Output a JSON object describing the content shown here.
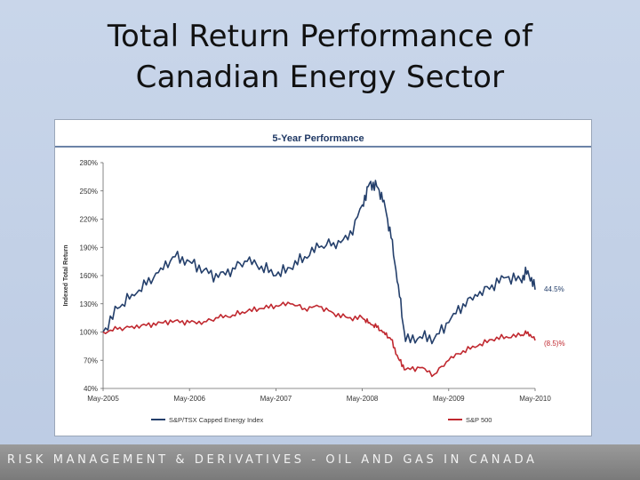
{
  "slide": {
    "title_line1": "Total Return Performance of",
    "title_line2": "Canadian Energy Sector",
    "footer": "RISK MANAGEMENT & DERIVATIVES - OIL AND GAS IN CANADA"
  },
  "chart_data": {
    "type": "line",
    "title": "5-Year Performance",
    "ylabel": "Indexed Total Return",
    "xlabel": "",
    "ylim": [
      40,
      280
    ],
    "y_unit": "%",
    "yticks": [
      "280%",
      "250%",
      "220%",
      "190%",
      "160%",
      "130%",
      "100%",
      "70%",
      "40%"
    ],
    "xticks": [
      "May-2005",
      "May-2006",
      "May-2007",
      "May-2008",
      "May-2009",
      "May-2010"
    ],
    "grid": false,
    "legend_position": "bottom",
    "x": [
      "May-2005",
      "Jul-2005",
      "Sep-2005",
      "Nov-2005",
      "Jan-2006",
      "Mar-2006",
      "May-2006",
      "Jul-2006",
      "Sep-2006",
      "Nov-2006",
      "Jan-2007",
      "Mar-2007",
      "May-2007",
      "Jul-2007",
      "Sep-2007",
      "Nov-2007",
      "Jan-2008",
      "Mar-2008",
      "May-2008",
      "Jun-2008",
      "Jul-2008",
      "Aug-2008",
      "Sep-2008",
      "Oct-2008",
      "Nov-2008",
      "Jan-2009",
      "Mar-2009",
      "May-2009",
      "Jul-2009",
      "Sep-2009",
      "Nov-2009",
      "Jan-2010",
      "Mar-2010",
      "Apr-2010",
      "May-2010"
    ],
    "series": [
      {
        "name": "S&P/TSX Capped Energy Index",
        "color": "#243f6b",
        "end_label": "44.5%",
        "values": [
          100,
          125,
          140,
          150,
          168,
          180,
          175,
          166,
          158,
          168,
          175,
          170,
          160,
          168,
          180,
          190,
          195,
          198,
          235,
          258,
          255,
          240,
          200,
          150,
          90,
          95,
          93,
          110,
          130,
          138,
          150,
          158,
          155,
          165,
          145
        ]
      },
      {
        "name": "S&P 500",
        "color": "#c0282f",
        "end_label": "(8.5)%",
        "values": [
          100,
          103,
          106,
          107,
          110,
          112,
          110,
          111,
          115,
          118,
          122,
          125,
          128,
          130,
          125,
          127,
          120,
          115,
          115,
          110,
          105,
          100,
          92,
          72,
          60,
          62,
          55,
          70,
          80,
          85,
          92,
          95,
          96,
          100,
          91
        ]
      }
    ]
  }
}
